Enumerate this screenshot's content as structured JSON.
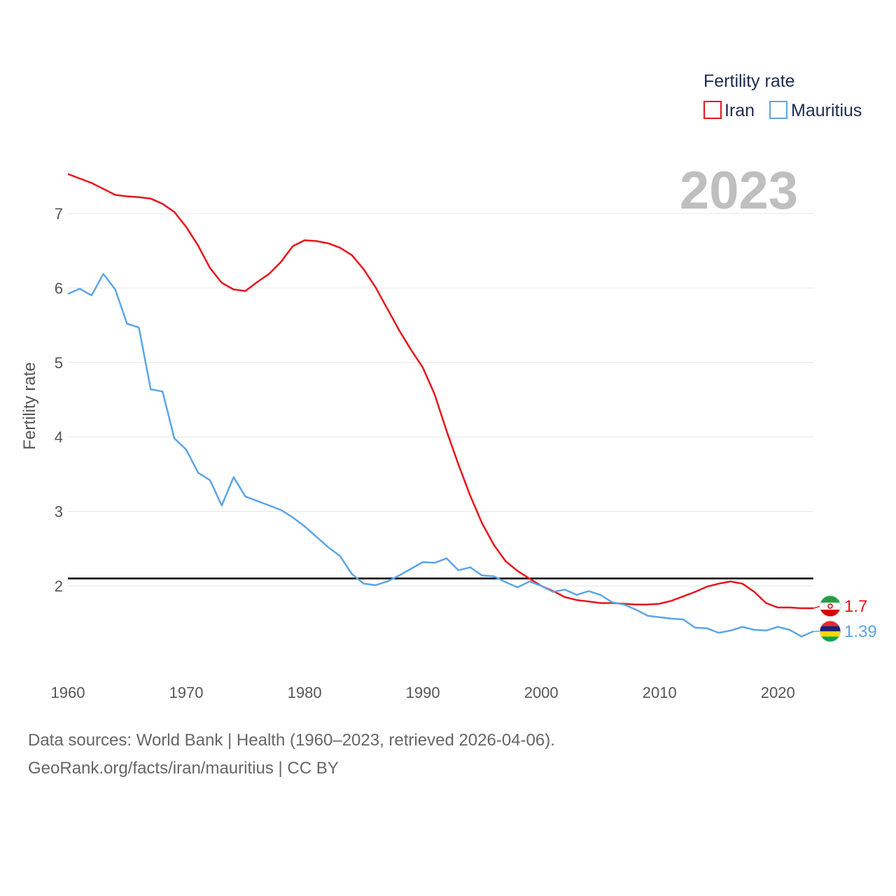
{
  "chart_data": {
    "type": "line",
    "legend_title": "Fertility rate",
    "ylabel": "Fertility rate",
    "year_label": "2023",
    "xlim": [
      1960,
      2023
    ],
    "ylim": [
      1.0,
      7.6
    ],
    "x_ticks": [
      1960,
      1970,
      1980,
      1990,
      2000,
      2010,
      2020
    ],
    "y_ticks": [
      2,
      3,
      4,
      5,
      6,
      7
    ],
    "reference_line": 2.1,
    "years": [
      1960,
      1961,
      1962,
      1963,
      1964,
      1965,
      1966,
      1967,
      1968,
      1969,
      1970,
      1971,
      1972,
      1973,
      1974,
      1975,
      1976,
      1977,
      1978,
      1979,
      1980,
      1981,
      1982,
      1983,
      1984,
      1985,
      1986,
      1987,
      1988,
      1989,
      1990,
      1991,
      1992,
      1993,
      1994,
      1995,
      1996,
      1997,
      1998,
      1999,
      2000,
      2001,
      2002,
      2003,
      2004,
      2005,
      2006,
      2007,
      2008,
      2009,
      2010,
      2011,
      2012,
      2013,
      2014,
      2015,
      2016,
      2017,
      2018,
      2019,
      2020,
      2021,
      2022,
      2023
    ],
    "series": [
      {
        "name": "Iran",
        "color": "#e8141b",
        "end_label": "1.7",
        "values": [
          7.53,
          7.47,
          7.41,
          7.33,
          7.25,
          7.23,
          7.22,
          7.2,
          7.13,
          7.02,
          6.82,
          6.57,
          6.27,
          6.07,
          5.98,
          5.96,
          6.08,
          6.19,
          6.35,
          6.56,
          6.64,
          6.63,
          6.6,
          6.54,
          6.44,
          6.25,
          6.01,
          5.72,
          5.43,
          5.17,
          4.93,
          4.57,
          4.08,
          3.63,
          3.21,
          2.84,
          2.55,
          2.33,
          2.2,
          2.1,
          2.0,
          1.93,
          1.85,
          1.81,
          1.79,
          1.77,
          1.77,
          1.76,
          1.75,
          1.75,
          1.76,
          1.8,
          1.86,
          1.92,
          1.99,
          2.03,
          2.06,
          2.03,
          1.92,
          1.77,
          1.71,
          1.71,
          1.7,
          1.7
        ]
      },
      {
        "name": "Mauritius",
        "color": "#5ca5e6",
        "end_label": "1.39",
        "values": [
          5.92,
          5.99,
          5.9,
          6.19,
          5.98,
          5.52,
          5.47,
          4.64,
          4.61,
          3.98,
          3.83,
          3.52,
          3.42,
          3.08,
          3.46,
          3.2,
          3.14,
          3.08,
          3.02,
          2.92,
          2.8,
          2.66,
          2.52,
          2.4,
          2.16,
          2.03,
          2.01,
          2.06,
          2.14,
          2.23,
          2.32,
          2.31,
          2.37,
          2.21,
          2.25,
          2.14,
          2.13,
          2.05,
          1.98,
          2.06,
          2.0,
          1.92,
          1.95,
          1.88,
          1.93,
          1.88,
          1.78,
          1.75,
          1.68,
          1.6,
          1.58,
          1.56,
          1.55,
          1.44,
          1.43,
          1.37,
          1.4,
          1.45,
          1.41,
          1.4,
          1.45,
          1.41,
          1.32,
          1.39
        ]
      }
    ]
  },
  "footer": {
    "source_line": "Data sources: World Bank | Health (1960–2023, retrieved 2026-04-06).",
    "attribution_line": "GeoRank.org/facts/iran/mauritius | CC BY"
  }
}
